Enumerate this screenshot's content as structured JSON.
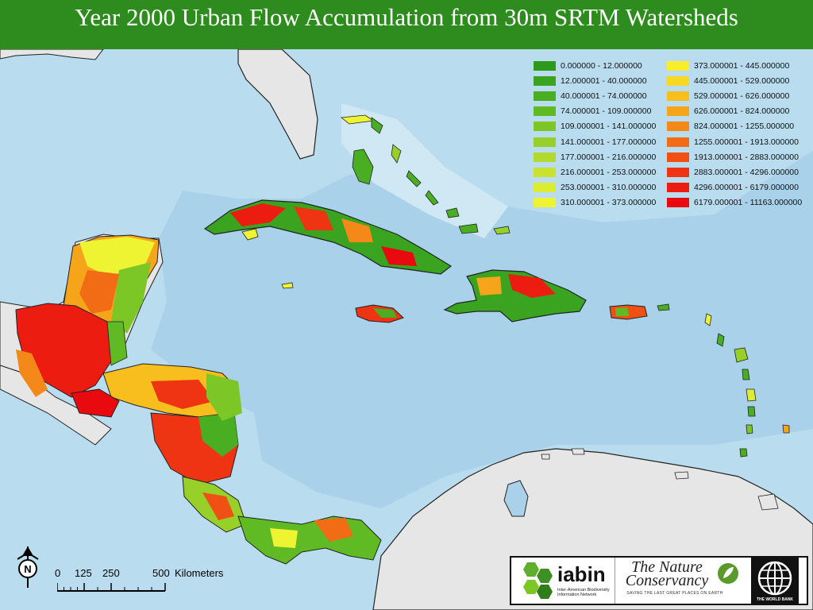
{
  "title": "Year 2000 Urban Flow Accumulation from 30m SRTM Watersheds",
  "legend": {
    "items": [
      {
        "label": "0.000000 - 12.000000",
        "color": "#2e9a1c"
      },
      {
        "label": "12.000001 - 40.000000",
        "color": "#3aa420"
      },
      {
        "label": "40.000001 - 74.000000",
        "color": "#4aae22"
      },
      {
        "label": "74.000001 - 109.000000",
        "color": "#5fba24"
      },
      {
        "label": "109.000001 - 141.000000",
        "color": "#7cc626"
      },
      {
        "label": "141.000001 - 177.000000",
        "color": "#98d02a"
      },
      {
        "label": "177.000001 - 216.000000",
        "color": "#b2da2e"
      },
      {
        "label": "216.000001 - 253.000000",
        "color": "#c8e430"
      },
      {
        "label": "253.000001 - 310.000000",
        "color": "#dcec30"
      },
      {
        "label": "310.000001 - 373.000000",
        "color": "#eef432"
      },
      {
        "label": "373.000001 - 445.000000",
        "color": "#f8ee2a"
      },
      {
        "label": "445.000001 - 529.000000",
        "color": "#f8d822"
      },
      {
        "label": "529.000001 - 626.000000",
        "color": "#f8be1e"
      },
      {
        "label": "626.000001 - 824.000000",
        "color": "#f6a41a"
      },
      {
        "label": "824.000001 - 1255.000000",
        "color": "#f48818"
      },
      {
        "label": "1255.000001 - 1913.000000",
        "color": "#f26c16"
      },
      {
        "label": "1913.000001 - 2883.000000",
        "color": "#f05014"
      },
      {
        "label": "2883.000001 - 4296.000000",
        "color": "#ee3412"
      },
      {
        "label": "4296.000001 - 6179.000000",
        "color": "#ec1c10"
      },
      {
        "label": "6179.000001 - 11163.000000",
        "color": "#e80a0e"
      }
    ]
  },
  "scale_bar": {
    "labels": [
      "0",
      "125",
      "250",
      "500"
    ],
    "unit": "Kilometers"
  },
  "north_arrow": {
    "letter": "N",
    "icon": "north-arrow-icon"
  },
  "logos": {
    "iabin": {
      "name": "iabin",
      "subtitle": "Inter-American Biodiversity Information Network"
    },
    "tnc": {
      "name": "The Nature Conservancy",
      "tagline": "SAVING THE LAST GREAT PLACES ON EARTH"
    },
    "world_bank": {
      "name": "THE WORLD BANK"
    }
  },
  "colors": {
    "title_bar": "#2e8b1e",
    "sea": "#a9d2ea",
    "shelf": "#c7e3f2",
    "land_grey": "#e6e6e6"
  }
}
